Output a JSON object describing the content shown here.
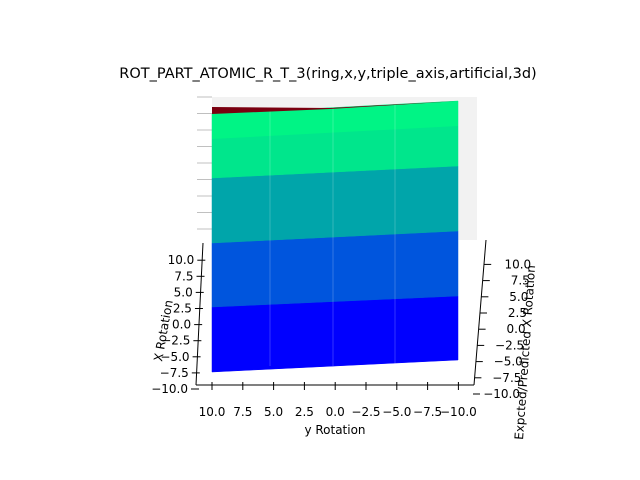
{
  "chart_data": {
    "type": "surface-3d",
    "title": "ROT_PART_ATOMIC_R_T_3(ring,x,y,triple_axis,artificial,3d)",
    "xlabel": "X Rotation",
    "ylabel": "y Rotation",
    "zlabel": "Expcted/Predicted X Rotation",
    "x_ticks": [
      "10.0",
      "7.5",
      "5.0",
      "2.5",
      "0.0",
      "-2.5",
      "-5.0",
      "-7.5",
      "-10.0"
    ],
    "x_tick_labels": [
      "−10.0",
      "−7.5",
      "−5.0",
      "−2.5",
      "0.0",
      "2.5",
      "5.0",
      "7.5",
      "10.0"
    ],
    "y_tick_labels": [
      "10.0",
      "7.5",
      "5.0",
      "2.5",
      "0.0",
      "−2.5",
      "−5.0",
      "−7.5",
      "−10.0"
    ],
    "z_tick_labels": [
      "−10.0",
      "−7.5",
      "−5.0",
      "−2.5",
      "0.0",
      "2.5",
      "5.0",
      "7.5",
      "10.0"
    ],
    "xlim": [
      -10,
      10
    ],
    "ylim": [
      -10,
      10
    ],
    "zlim": [
      -10,
      10
    ],
    "grid": true,
    "surface_bands": [
      {
        "color": "#0000ff"
      },
      {
        "color": "#0055dd"
      },
      {
        "color": "#00a5aa"
      },
      {
        "color": "#00e68c"
      },
      {
        "color": "#00ff7f"
      }
    ],
    "top_edge_color": "#7a0010"
  }
}
